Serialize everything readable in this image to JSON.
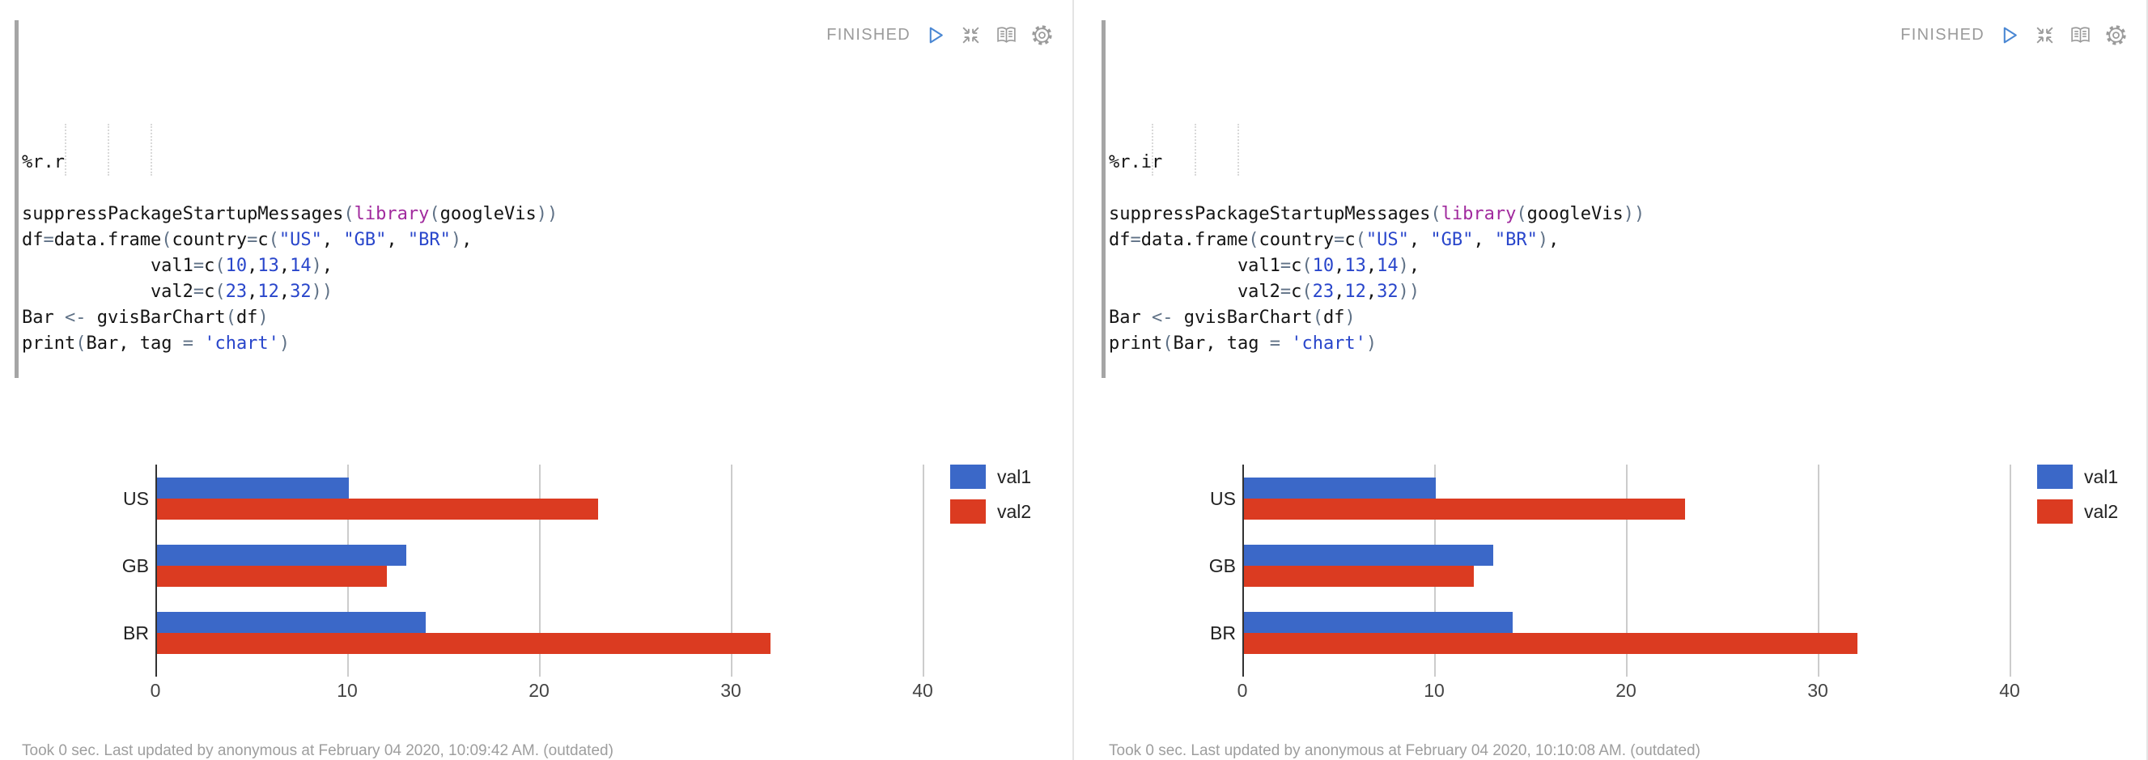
{
  "ui": {
    "status_label": "FINISHED",
    "icons": [
      "play-icon",
      "collapse-icon",
      "book-icon",
      "gear-icon"
    ],
    "colors": {
      "bar_blue": "#3b68c8",
      "bar_red": "#db3b21",
      "code_keyword": "#a12b9e",
      "code_literal": "#2946cb",
      "code_punctuation": "#5f7186",
      "status_gray": "#9b9b9b",
      "play_blue": "#4a87d3"
    }
  },
  "paragraphs": [
    {
      "title": "%r.r",
      "status": "FINISHED",
      "footer": "Took 0 sec. Last updated by anonymous at February 04 2020, 10:09:42 AM. (outdated)",
      "code_lines": [
        [
          [
            "t",
            "suppressPackageStartupMessages"
          ],
          [
            "p",
            "("
          ],
          [
            "k",
            "library"
          ],
          [
            "p",
            "("
          ],
          [
            "t",
            "googleVis"
          ],
          [
            "p",
            "))"
          ]
        ],
        [
          [
            "t",
            "df"
          ],
          [
            "p",
            "="
          ],
          [
            "t",
            "data.frame"
          ],
          [
            "p",
            "("
          ],
          [
            "t",
            "country"
          ],
          [
            "p",
            "="
          ],
          [
            "t",
            "c"
          ],
          [
            "p",
            "("
          ],
          [
            "s",
            "\"US\""
          ],
          [
            "t",
            ", "
          ],
          [
            "s",
            "\"GB\""
          ],
          [
            "t",
            ", "
          ],
          [
            "s",
            "\"BR\""
          ],
          [
            "p",
            ")"
          ],
          [
            "t",
            ","
          ]
        ],
        [
          [
            "t",
            "            val1"
          ],
          [
            "p",
            "="
          ],
          [
            "t",
            "c"
          ],
          [
            "p",
            "("
          ],
          [
            "s",
            "10"
          ],
          [
            "t",
            ","
          ],
          [
            "s",
            "13"
          ],
          [
            "t",
            ","
          ],
          [
            "s",
            "14"
          ],
          [
            "p",
            ")"
          ],
          [
            "t",
            ","
          ]
        ],
        [
          [
            "t",
            "            val2"
          ],
          [
            "p",
            "="
          ],
          [
            "t",
            "c"
          ],
          [
            "p",
            "("
          ],
          [
            "s",
            "23"
          ],
          [
            "t",
            ","
          ],
          [
            "s",
            "12"
          ],
          [
            "t",
            ","
          ],
          [
            "s",
            "32"
          ],
          [
            "p",
            "))"
          ]
        ],
        [
          [
            "t",
            "Bar "
          ],
          [
            "p",
            "<- "
          ],
          [
            "t",
            "gvisBarChart"
          ],
          [
            "p",
            "("
          ],
          [
            "t",
            "df"
          ],
          [
            "p",
            ")"
          ]
        ],
        [
          [
            "t",
            "print"
          ],
          [
            "p",
            "("
          ],
          [
            "t",
            "Bar, tag "
          ],
          [
            "p",
            "= "
          ],
          [
            "s",
            "'chart'"
          ],
          [
            "p",
            ")"
          ]
        ]
      ]
    },
    {
      "title": "%r.ir",
      "status": "FINISHED",
      "footer": "Took 0 sec. Last updated by anonymous at February 04 2020, 10:10:08 AM. (outdated)",
      "code_lines": [
        [
          [
            "t",
            "suppressPackageStartupMessages"
          ],
          [
            "p",
            "("
          ],
          [
            "k",
            "library"
          ],
          [
            "p",
            "("
          ],
          [
            "t",
            "googleVis"
          ],
          [
            "p",
            "))"
          ]
        ],
        [
          [
            "t",
            "df"
          ],
          [
            "p",
            "="
          ],
          [
            "t",
            "data.frame"
          ],
          [
            "p",
            "("
          ],
          [
            "t",
            "country"
          ],
          [
            "p",
            "="
          ],
          [
            "t",
            "c"
          ],
          [
            "p",
            "("
          ],
          [
            "s",
            "\"US\""
          ],
          [
            "t",
            ", "
          ],
          [
            "s",
            "\"GB\""
          ],
          [
            "t",
            ", "
          ],
          [
            "s",
            "\"BR\""
          ],
          [
            "p",
            ")"
          ],
          [
            "t",
            ","
          ]
        ],
        [
          [
            "t",
            "            val1"
          ],
          [
            "p",
            "="
          ],
          [
            "t",
            "c"
          ],
          [
            "p",
            "("
          ],
          [
            "s",
            "10"
          ],
          [
            "t",
            ","
          ],
          [
            "s",
            "13"
          ],
          [
            "t",
            ","
          ],
          [
            "s",
            "14"
          ],
          [
            "p",
            ")"
          ],
          [
            "t",
            ","
          ]
        ],
        [
          [
            "t",
            "            val2"
          ],
          [
            "p",
            "="
          ],
          [
            "t",
            "c"
          ],
          [
            "p",
            "("
          ],
          [
            "s",
            "23"
          ],
          [
            "t",
            ","
          ],
          [
            "s",
            "12"
          ],
          [
            "t",
            ","
          ],
          [
            "s",
            "32"
          ],
          [
            "p",
            "))"
          ]
        ],
        [
          [
            "t",
            "Bar "
          ],
          [
            "p",
            "<- "
          ],
          [
            "t",
            "gvisBarChart"
          ],
          [
            "p",
            "("
          ],
          [
            "t",
            "df"
          ],
          [
            "p",
            ")"
          ]
        ],
        [
          [
            "t",
            "print"
          ],
          [
            "p",
            "("
          ],
          [
            "t",
            "Bar, tag "
          ],
          [
            "p",
            "= "
          ],
          [
            "s",
            "'chart'"
          ],
          [
            "p",
            ")"
          ]
        ]
      ]
    }
  ],
  "chart_data": {
    "type": "bar",
    "orientation": "horizontal",
    "title": "",
    "categories": [
      "US",
      "GB",
      "BR"
    ],
    "series": [
      {
        "name": "val1",
        "color": "#3b68c8",
        "values": [
          10,
          13,
          14
        ]
      },
      {
        "name": "val2",
        "color": "#db3b21",
        "values": [
          23,
          12,
          32
        ]
      }
    ],
    "x_ticks": [
      0,
      10,
      20,
      30,
      40
    ],
    "xlim": [
      0,
      45
    ],
    "legend_position": "right",
    "gridlines": true
  }
}
